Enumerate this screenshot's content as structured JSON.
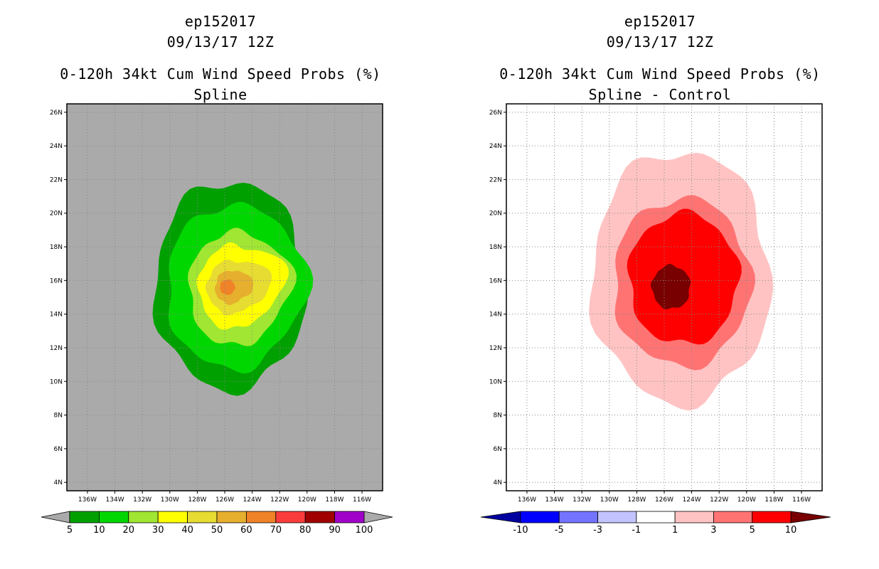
{
  "chart_data": [
    {
      "type": "contour-map",
      "storm_id": "ep152017",
      "datetime": "09/13/17 12Z",
      "title": "0-120h 34kt Cum Wind Speed Probs (%)",
      "subtitle": "Spline",
      "xlim": [
        -137.5,
        -114.5
      ],
      "ylim": [
        3.5,
        26.5
      ],
      "x_ticks": [
        -136,
        -134,
        -132,
        -130,
        -128,
        -126,
        -124,
        -122,
        -120,
        -118,
        -116
      ],
      "y_ticks": [
        4,
        6,
        8,
        10,
        12,
        14,
        16,
        18,
        20,
        22,
        24,
        26
      ],
      "x_tick_labels": [
        "136W",
        "134W",
        "132W",
        "130W",
        "128W",
        "126W",
        "124W",
        "122W",
        "120W",
        "118W",
        "116W"
      ],
      "y_tick_labels": [
        "4N",
        "6N",
        "8N",
        "10N",
        "12N",
        "14N",
        "16N",
        "18N",
        "20N",
        "22N",
        "24N",
        "26N"
      ],
      "background_color": "#aaaaaa",
      "grid": true,
      "center": [
        -125.8,
        15.6
      ],
      "levels": [
        {
          "level": 5,
          "color": "#00a000",
          "rx": 5.5,
          "ry": 6.2,
          "dx": 0.2,
          "dy": 0.1,
          "tail": 0
        },
        {
          "level": 10,
          "color": "#00d700",
          "rx": 4.7,
          "ry": 4.9,
          "dx": 0.3,
          "dy": 0.0,
          "tail": 0.2
        },
        {
          "level": 20,
          "color": "#a0e632",
          "rx": 3.3,
          "ry": 3.4,
          "dx": 0.5,
          "dy": -0.1,
          "tail": 0.3
        },
        {
          "level": 30,
          "color": "#ffff00",
          "rx": 2.5,
          "ry": 2.5,
          "dx": 0.4,
          "dy": 0.0,
          "tail": 0.6
        },
        {
          "level": 40,
          "color": "#e6dc32",
          "rx": 1.8,
          "ry": 1.6,
          "dx": 0.3,
          "dy": 0.0,
          "tail": 0.7
        },
        {
          "level": 50,
          "color": "#e6af2d",
          "rx": 1.1,
          "ry": 1.0,
          "dx": 0.2,
          "dy": 0.0,
          "tail": 0.6
        },
        {
          "level": 60,
          "color": "#f08228",
          "rx": 0.55,
          "ry": 0.45,
          "dx": 0.0,
          "dy": 0.0,
          "tail": 0
        }
      ],
      "colorbar": {
        "labels": [
          "5",
          "10",
          "20",
          "30",
          "40",
          "50",
          "60",
          "70",
          "80",
          "90",
          "100"
        ],
        "colors": [
          "#00a000",
          "#00d700",
          "#a0e632",
          "#ffff00",
          "#e6dc32",
          "#e6af2d",
          "#f08228",
          "#fa3c3c",
          "#a00000",
          "#a000c8"
        ],
        "under_color": "#aaaaaa",
        "over_color": "#aaaaaa"
      }
    },
    {
      "type": "contour-map",
      "storm_id": "ep152017",
      "datetime": "09/13/17 12Z",
      "title": "0-120h 34kt Cum Wind Speed Probs (%)",
      "subtitle": "Spline - Control",
      "xlim": [
        -137.5,
        -114.5
      ],
      "ylim": [
        3.5,
        26.5
      ],
      "x_ticks": [
        -136,
        -134,
        -132,
        -130,
        -128,
        -126,
        -124,
        -122,
        -120,
        -118,
        -116
      ],
      "y_ticks": [
        4,
        6,
        8,
        10,
        12,
        14,
        16,
        18,
        20,
        22,
        24,
        26
      ],
      "x_tick_labels": [
        "136W",
        "134W",
        "132W",
        "130W",
        "128W",
        "126W",
        "124W",
        "122W",
        "120W",
        "118W",
        "116W"
      ],
      "y_tick_labels": [
        "4N",
        "6N",
        "8N",
        "10N",
        "12N",
        "14N",
        "16N",
        "18N",
        "20N",
        "22N",
        "24N",
        "26N"
      ],
      "background_color": "#ffffff",
      "grid": true,
      "center": [
        -125.0,
        15.6
      ],
      "levels": [
        {
          "level": 1,
          "color": "#ffc3c3",
          "rx": 6.5,
          "ry": 7.5,
          "dx": 0.2,
          "dy": 0.6,
          "tail": 0
        },
        {
          "level": 3,
          "color": "#ff7373",
          "rx": 5.0,
          "ry": 5.0,
          "dx": 0.3,
          "dy": 0.3,
          "tail": 0
        },
        {
          "level": 5,
          "color": "#ff0000",
          "rx": 4.0,
          "ry": 3.9,
          "dx": 0.4,
          "dy": 0.5,
          "tail": 0
        },
        {
          "level": 10,
          "color": "#780000",
          "rx": 1.4,
          "ry": 1.3,
          "dx": -0.5,
          "dy": 0.0,
          "tail": 0
        }
      ],
      "colorbar": {
        "labels": [
          "-10",
          "-5",
          "-3",
          "-1",
          "1",
          "3",
          "5",
          "10"
        ],
        "colors": [
          "#0000ff",
          "#7373ff",
          "#c3c3ff",
          "#ffffff",
          "#ffc3c3",
          "#ff7373",
          "#ff0000"
        ],
        "under_color": "#0000a0",
        "over_color": "#780000"
      }
    }
  ]
}
